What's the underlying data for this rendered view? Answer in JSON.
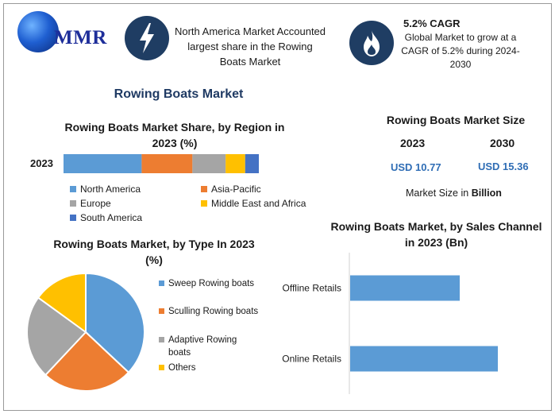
{
  "logo": {
    "text": "MMR"
  },
  "header": {
    "highlight_icon": "lightning-bolt-icon",
    "highlight_text": "North America Market Accounted largest share in the Rowing Boats Market",
    "cagr_icon": "flame-icon",
    "cagr_title": "5.2% CAGR",
    "cagr_text": "Global Market to grow at a CAGR of 5.2% during 2024-2030"
  },
  "main_title": "Rowing Boats Market",
  "colors": {
    "north_america": "#5b9bd5",
    "asia_pacific": "#ed7d31",
    "europe": "#a5a5a5",
    "mea": "#ffc000",
    "south_america": "#4472c4",
    "icon_bg": "#1f3d63",
    "accent_value": "#2f6db5"
  },
  "chart_data": [
    {
      "type": "bar",
      "orientation": "horizontal-stacked",
      "title": "Rowing Boats Market Share, by Region in 2023 (%)",
      "categories": [
        "2023"
      ],
      "series": [
        {
          "name": "North America",
          "values": [
            40
          ]
        },
        {
          "name": "Asia-Pacific",
          "values": [
            26
          ]
        },
        {
          "name": "Europe",
          "values": [
            17
          ]
        },
        {
          "name": "Middle East and Africa",
          "values": [
            10
          ]
        },
        {
          "name": "South America",
          "values": [
            7
          ]
        }
      ]
    },
    {
      "type": "pie",
      "title": "Rowing Boats Market, by Type In 2023 (%)",
      "labels": [
        "Sweep Rowing boats",
        "Sculling Rowing boats",
        "Adaptive Rowing boats",
        "Others"
      ],
      "values": [
        37,
        25,
        23,
        15
      ],
      "colors": [
        "#5b9bd5",
        "#ed7d31",
        "#a5a5a5",
        "#ffc000"
      ]
    },
    {
      "type": "bar",
      "orientation": "horizontal",
      "title": "Rowing Boats Market, by Sales Channel in 2023 (Bn)",
      "categories": [
        "Offline Retails",
        "Online Retails"
      ],
      "values": [
        4.6,
        6.2
      ],
      "xlim": [
        0,
        7
      ],
      "color": "#5b9bd5"
    }
  ],
  "market_size": {
    "title": "Rowing Boats Market Size",
    "year_a": "2023",
    "year_b": "2030",
    "value_a": "USD 10.77",
    "value_b": "USD 15.36",
    "unit_prefix": "Market Size in",
    "unit_word": "Billion"
  }
}
